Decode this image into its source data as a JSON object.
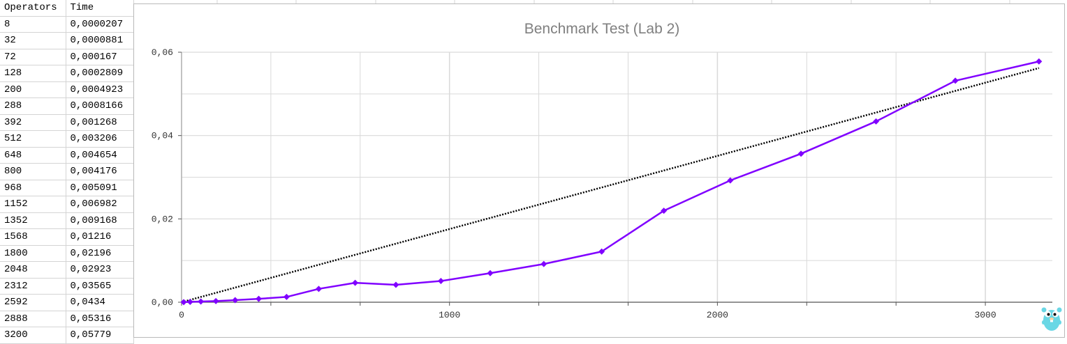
{
  "table": {
    "headers": [
      "Operators",
      "Time"
    ],
    "rows": [
      [
        "8",
        "0,0000207"
      ],
      [
        "32",
        "0,0000881"
      ],
      [
        "72",
        "0,000167"
      ],
      [
        "128",
        "0,0002809"
      ],
      [
        "200",
        "0,0004923"
      ],
      [
        "288",
        "0,0008166"
      ],
      [
        "392",
        "0,001268"
      ],
      [
        "512",
        "0,003206"
      ],
      [
        "648",
        "0,004654"
      ],
      [
        "800",
        "0,004176"
      ],
      [
        "968",
        "0,005091"
      ],
      [
        "1152",
        "0,006982"
      ],
      [
        "1352",
        "0,009168"
      ],
      [
        "1568",
        "0,01216"
      ],
      [
        "1800",
        "0,02196"
      ],
      [
        "2048",
        "0,02923"
      ],
      [
        "2312",
        "0,03565"
      ],
      [
        "2592",
        "0,0434"
      ],
      [
        "2888",
        "0,05316"
      ],
      [
        "3200",
        "0,05779"
      ]
    ]
  },
  "chart_data": {
    "type": "scatter",
    "title": "Benchmark Test (Lab 2)",
    "xlabel": "",
    "ylabel": "",
    "xlim": [
      0,
      3250
    ],
    "ylim": [
      0,
      0.06
    ],
    "x_ticks": [
      0,
      1000,
      2000,
      3000
    ],
    "x_tick_labels": [
      "0",
      "1000",
      "2000",
      "3000"
    ],
    "y_ticks": [
      0,
      0.02,
      0.04,
      0.06
    ],
    "y_tick_labels": [
      "0,00",
      "0,02",
      "0,04",
      "0,06"
    ],
    "grid": true,
    "legend": "none",
    "series": [
      {
        "color": "#8000ff",
        "marker": "diamond",
        "x": [
          8,
          32,
          72,
          128,
          200,
          288,
          392,
          512,
          648,
          800,
          968,
          1152,
          1352,
          1568,
          1800,
          2048,
          2312,
          2592,
          2888,
          3200
        ],
        "y": [
          2.07e-05,
          8.81e-05,
          0.000167,
          0.0002809,
          0.0004923,
          0.0008166,
          0.001268,
          0.003206,
          0.004654,
          0.004176,
          0.005091,
          0.006982,
          0.009168,
          0.01216,
          0.02196,
          0.02923,
          0.03565,
          0.0434,
          0.05316,
          0.05779
        ]
      }
    ],
    "trendline": {
      "type": "linear",
      "style": "dotted",
      "color": "#000000",
      "x": [
        0,
        3200
      ],
      "y": [
        0,
        0.0562
      ]
    }
  },
  "colors": {
    "series": "#8000ff",
    "trend": "#000000",
    "grid": "#d9d9d9",
    "axis": "#b3b3b3",
    "title": "#7f7f7f"
  },
  "icons": {
    "corner": "gopher-icon"
  }
}
